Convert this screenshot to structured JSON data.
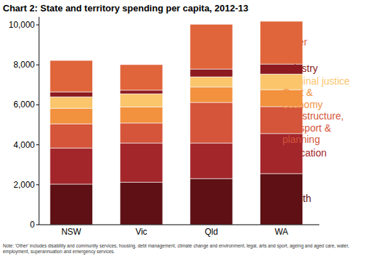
{
  "chart_data": {
    "type": "bar",
    "stacked": true,
    "title": "Chart 2:  State and territory spending per capita, 2012-13",
    "annotations": [
      "Note: 'Other' includes disability and community services, housing, debt management, climate change and environment, legal, arts and sport, ageing and aged care, water, employment, superannuation and emergency services."
    ],
    "categories": [
      "NSW",
      "Vic",
      "Qld",
      "WA"
    ],
    "series": [
      {
        "name": "Health",
        "color": "#5e1014",
        "values": [
          2030,
          2130,
          2310,
          2560
        ]
      },
      {
        "name": "Education",
        "color": "#a3262b",
        "values": [
          1810,
          1960,
          1780,
          2000
        ]
      },
      {
        "name": "Infrastructure, transport & planning",
        "color": "#d4553a",
        "values": [
          1210,
          1000,
          2030,
          1350
        ]
      },
      {
        "name": "Govt & economy",
        "color": "#f2913e",
        "values": [
          780,
          810,
          780,
          850
        ]
      },
      {
        "name": "Criminal justice",
        "color": "#fbc56c",
        "values": [
          570,
          650,
          500,
          780
        ]
      },
      {
        "name": "Industry",
        "color": "#8c1a20",
        "values": [
          250,
          180,
          390,
          500
        ]
      },
      {
        "name": "Other",
        "color": "#e0653b",
        "values": [
          1570,
          1280,
          2240,
          2140
        ]
      }
    ],
    "ylim": [
      0,
      10400
    ],
    "yticks": [
      0,
      {
        "value": 2000,
        "label": "2,000"
      },
      {
        "value": 4000,
        "label": "4,000"
      },
      {
        "value": 6000,
        "label": "6,000"
      },
      {
        "value": 8000,
        "label": "8,000"
      },
      {
        "value": 10000,
        "label": "10,000"
      }
    ],
    "grid": false,
    "legend": "right"
  }
}
